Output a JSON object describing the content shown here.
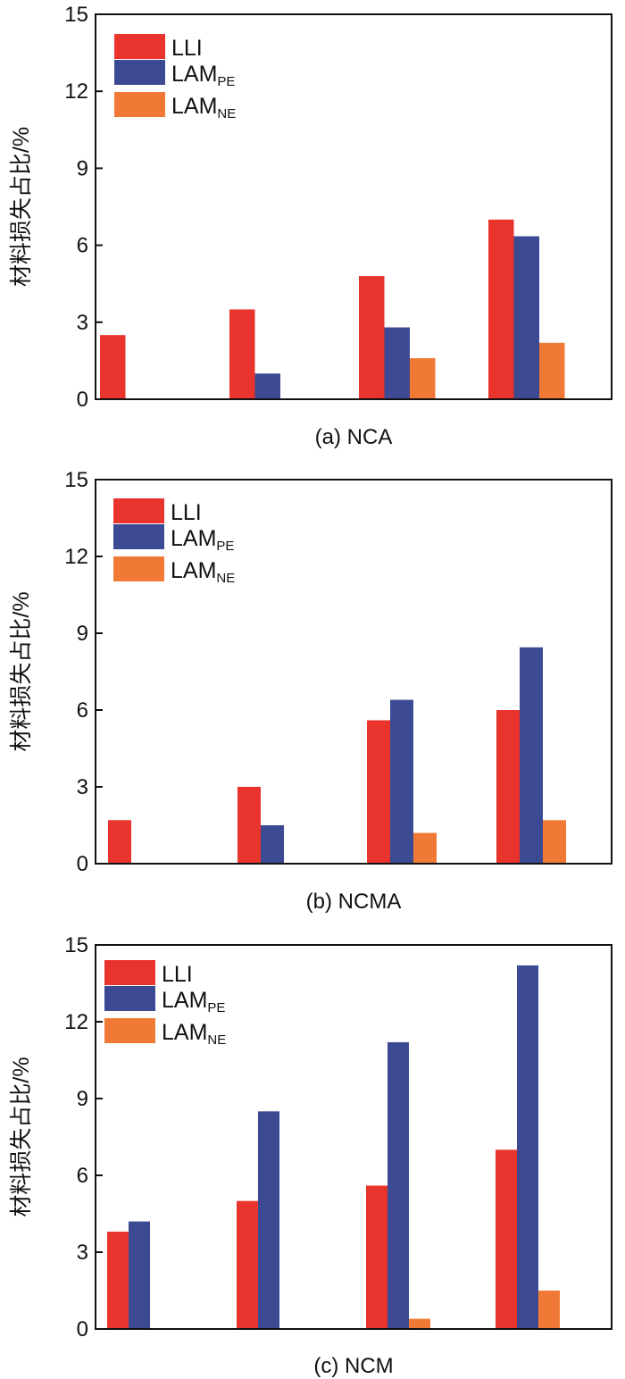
{
  "colors": {
    "LLI": "#e8342c",
    "LAM_PE": "#3c4a94",
    "LAM_NE": "#f07a35"
  },
  "chart_data": [
    {
      "type": "bar",
      "title": "(a) NCA",
      "ylabel": "材料损失占比/%",
      "ylim": [
        0,
        15
      ],
      "yticks": [
        "0",
        "3",
        "6",
        "9",
        "12",
        "15"
      ],
      "legend_placement": "top-left",
      "categories": [
        "",
        "",
        "",
        ""
      ],
      "series": [
        {
          "name": "LLI",
          "values": [
            2.5,
            3.5,
            4.8,
            7.0
          ]
        },
        {
          "name": "LAM",
          "sub": "PE",
          "values": [
            0,
            1.0,
            2.8,
            6.35
          ]
        },
        {
          "name": "LAM",
          "sub": "NE",
          "values": [
            0,
            0,
            1.6,
            2.2
          ]
        }
      ]
    },
    {
      "type": "bar",
      "title": "(b) NCMA",
      "ylabel": "材料损失占比/%",
      "ylim": [
        0,
        15
      ],
      "yticks": [
        "0",
        "3",
        "6",
        "9",
        "12",
        "15"
      ],
      "legend_placement": "top-left",
      "categories": [
        "",
        "",
        "",
        ""
      ],
      "series": [
        {
          "name": "LLI",
          "values": [
            1.7,
            3.0,
            5.6,
            6.0
          ]
        },
        {
          "name": "LAM",
          "sub": "PE",
          "values": [
            0,
            1.5,
            6.4,
            8.45
          ]
        },
        {
          "name": "LAM",
          "sub": "NE",
          "values": [
            0,
            0,
            1.2,
            1.7
          ]
        }
      ]
    },
    {
      "type": "bar",
      "title": "(c) NCM",
      "ylabel": "材料损失占比/%",
      "ylim": [
        0,
        15
      ],
      "yticks": [
        "0",
        "3",
        "6",
        "9",
        "12",
        "15"
      ],
      "legend_placement": "top-left",
      "categories": [
        "",
        "",
        "",
        ""
      ],
      "series": [
        {
          "name": "LLI",
          "values": [
            3.8,
            5.0,
            5.6,
            7.0
          ]
        },
        {
          "name": "LAM",
          "sub": "PE",
          "values": [
            4.2,
            8.5,
            11.2,
            14.2
          ]
        },
        {
          "name": "LAM",
          "sub": "NE",
          "values": [
            0,
            0,
            0.4,
            1.5
          ]
        }
      ]
    }
  ]
}
